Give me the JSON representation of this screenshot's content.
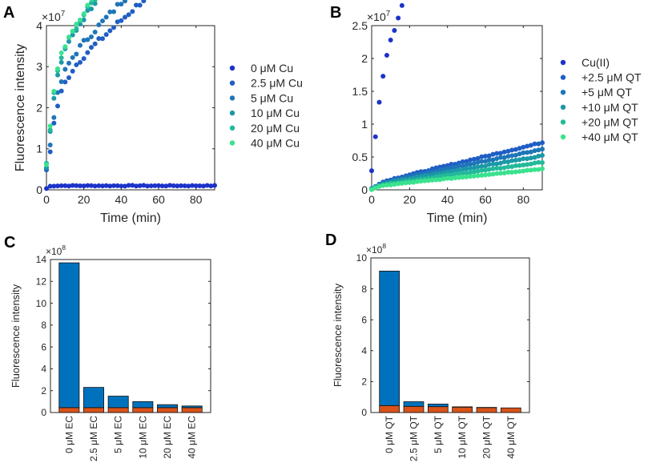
{
  "chart_data": [
    {
      "panel": "A",
      "type": "scatter",
      "xlabel": "Time (min)",
      "ylabel": "Fluorescence intensity",
      "y_exponent": "×10",
      "y_exponent_power": "7",
      "xlim": [
        0,
        90
      ],
      "ylim": [
        0,
        4
      ],
      "xticks": [
        "0",
        "20",
        "40",
        "60",
        "80"
      ],
      "yticks": [
        "0",
        "1",
        "2",
        "3",
        "4"
      ],
      "legend_position": "right",
      "series": [
        {
          "name": "0 μM Cu",
          "color": "#1c33c9",
          "plateau": 0.1,
          "rise": 0.09,
          "tau": 1,
          "noise": 0.01
        },
        {
          "name": "2.5 μM Cu",
          "color": "#1f5ec4",
          "plateau": 2.45,
          "rise": 1.4,
          "tau": 4.5,
          "slope": 0.0042,
          "noise": 0.07
        },
        {
          "name": "5 μM Cu",
          "color": "#1e75b8",
          "plateau": 2.65,
          "rise": 1.5,
          "tau": 4.2,
          "slope": 0.0048,
          "noise": 0.07
        },
        {
          "name": "10 μM Cu",
          "color": "#1b98a8",
          "plateau": 2.9,
          "rise": 1.7,
          "tau": 3.5,
          "slope": 0.0065,
          "noise": 0.06
        },
        {
          "name": "20 μM Cu",
          "color": "#23b99a",
          "plateau": 2.95,
          "rise": 1.8,
          "tau": 3.3,
          "slope": 0.0066,
          "noise": 0.06
        },
        {
          "name": "40 μM Cu",
          "color": "#3be28e",
          "plateau": 3.0,
          "rise": 1.9,
          "tau": 3.2,
          "slope": 0.0067,
          "noise": 0.06
        }
      ]
    },
    {
      "panel": "B",
      "type": "scatter",
      "xlabel": "Time (min)",
      "ylabel": "",
      "y_exponent": "×10",
      "y_exponent_power": "7",
      "xlim": [
        0,
        90
      ],
      "ylim": [
        0,
        2.5
      ],
      "xticks": [
        "0",
        "20",
        "40",
        "60",
        "80"
      ],
      "yticks": [
        "0",
        "0.5",
        "1",
        "1.5",
        "2",
        "2.5"
      ],
      "legend_position": "right",
      "series": [
        {
          "name": "Cu(II)",
          "color": "#1c33c9",
          "plateau": 1.9,
          "rise": 0.7,
          "tau": 4.5,
          "slope": 0.0058,
          "noise": 0.05
        },
        {
          "name": "+2.5 μM QT",
          "color": "#1f5ec4",
          "plateau": 0.09,
          "rise": 0.06,
          "tau": 3,
          "slope": 0.0007,
          "noise": 0.008
        },
        {
          "name": "+5 μM QT",
          "color": "#1e75b8",
          "plateau": 0.08,
          "rise": 0.05,
          "tau": 3,
          "slope": 0.0006,
          "noise": 0.008
        },
        {
          "name": "+10 μM QT",
          "color": "#1b98a8",
          "plateau": 0.07,
          "rise": 0.04,
          "tau": 3,
          "slope": 0.0005,
          "noise": 0.007
        },
        {
          "name": "+20 μM QT",
          "color": "#23b99a",
          "plateau": 0.06,
          "rise": 0.03,
          "tau": 3,
          "slope": 0.0004,
          "noise": 0.006
        },
        {
          "name": "+40 μM QT",
          "color": "#3be28e",
          "plateau": 0.05,
          "rise": 0.02,
          "tau": 3,
          "slope": 0.0003,
          "noise": 0.005
        }
      ]
    },
    {
      "panel": "C",
      "type": "bar",
      "stacked": true,
      "ylabel": "Fluorescence intensity",
      "y_exponent": "×10",
      "y_exponent_power": "8",
      "ylim": [
        0,
        14
      ],
      "yticks": [
        "0",
        "2",
        "4",
        "6",
        "8",
        "10",
        "12",
        "14"
      ],
      "categories": [
        "0 μM EC",
        "2.5 μM EC",
        "5 μM EC",
        "10 μM EC",
        "20 μM EC",
        "40 μM EC"
      ],
      "series": [
        {
          "name": "bottom",
          "color": "#d95319",
          "values": [
            0.45,
            0.45,
            0.45,
            0.45,
            0.45,
            0.45
          ]
        },
        {
          "name": "top",
          "color": "#0072bd",
          "values": [
            13.25,
            1.85,
            1.05,
            0.55,
            0.27,
            0.15
          ]
        }
      ]
    },
    {
      "panel": "D",
      "type": "bar",
      "stacked": true,
      "ylabel": "Fluorescence intensity",
      "y_exponent": "×10",
      "y_exponent_power": "8",
      "ylim": [
        0,
        10
      ],
      "yticks": [
        "0",
        "2",
        "4",
        "6",
        "8",
        "10"
      ],
      "categories": [
        "0 μM QT",
        "2.5 μM QT",
        "5 μM QT",
        "10 μM QT",
        "20 μM QT",
        "40 μM QT"
      ],
      "series": [
        {
          "name": "bottom",
          "color": "#d95319",
          "values": [
            0.45,
            0.4,
            0.38,
            0.35,
            0.32,
            0.3
          ]
        },
        {
          "name": "top",
          "color": "#0072bd",
          "values": [
            8.7,
            0.3,
            0.17,
            0.02,
            0.01,
            0.0
          ]
        }
      ]
    }
  ]
}
